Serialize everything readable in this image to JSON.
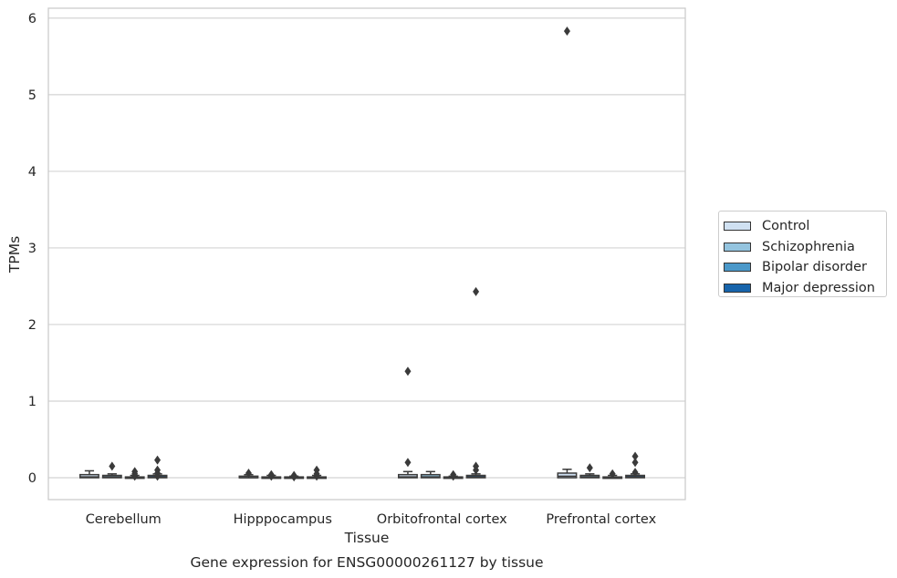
{
  "chart_data": {
    "type": "box",
    "title": "Gene expression for ENSG00000261127 by tissue",
    "xlabel": "Tissue",
    "ylabel": "TPMs",
    "ylim": [
      -0.28,
      6.13
    ],
    "yticks": [
      0,
      1,
      2,
      3,
      4,
      5,
      6
    ],
    "grid": true,
    "legend_position": "right",
    "categories": [
      "Cerebellum",
      "Hipppocampus",
      "Orbitofrontal cortex",
      "Prefrontal cortex"
    ],
    "series": [
      {
        "name": "Control",
        "color": "#d0e1f2",
        "boxes": [
          {
            "min": 0,
            "q1": 0,
            "median": 0.01,
            "q3": 0.04,
            "max": 0.09,
            "outliers": []
          },
          {
            "min": 0,
            "q1": 0,
            "median": 0,
            "q3": 0.02,
            "max": 0.04,
            "outliers": [
              0.06
            ]
          },
          {
            "min": 0,
            "q1": 0,
            "median": 0.01,
            "q3": 0.04,
            "max": 0.08,
            "outliers": [
              0.2,
              1.39
            ]
          },
          {
            "min": 0,
            "q1": 0,
            "median": 0.02,
            "q3": 0.06,
            "max": 0.11,
            "outliers": [
              5.83
            ]
          }
        ]
      },
      {
        "name": "Schizophrenia",
        "color": "#94c4df",
        "boxes": [
          {
            "min": 0,
            "q1": 0,
            "median": 0.01,
            "q3": 0.03,
            "max": 0.05,
            "outliers": [
              0.15
            ]
          },
          {
            "min": 0,
            "q1": 0,
            "median": 0,
            "q3": 0.01,
            "max": 0.03,
            "outliers": [
              0.04,
              0.02
            ]
          },
          {
            "min": 0,
            "q1": 0,
            "median": 0.01,
            "q3": 0.04,
            "max": 0.08,
            "outliers": []
          },
          {
            "min": 0,
            "q1": 0,
            "median": 0.01,
            "q3": 0.03,
            "max": 0.05,
            "outliers": [
              0.13
            ]
          }
        ]
      },
      {
        "name": "Bipolar disorder",
        "color": "#4a98c9",
        "boxes": [
          {
            "min": 0,
            "q1": 0,
            "median": 0,
            "q3": 0.01,
            "max": 0.03,
            "outliers": [
              0.08,
              0.05,
              0.02
            ]
          },
          {
            "min": 0,
            "q1": 0,
            "median": 0,
            "q3": 0.01,
            "max": 0.02,
            "outliers": [
              0.03,
              0.01
            ]
          },
          {
            "min": 0,
            "q1": 0,
            "median": 0,
            "q3": 0.01,
            "max": 0.02,
            "outliers": [
              0.04,
              0.02
            ]
          },
          {
            "min": 0,
            "q1": 0,
            "median": 0,
            "q3": 0.01,
            "max": 0.03,
            "outliers": [
              0.05
            ]
          }
        ]
      },
      {
        "name": "Major depression",
        "color": "#1764ab",
        "boxes": [
          {
            "min": 0,
            "q1": 0,
            "median": 0.01,
            "q3": 0.03,
            "max": 0.05,
            "outliers": [
              0.23,
              0.1,
              0.06,
              0.02
            ]
          },
          {
            "min": 0,
            "q1": 0,
            "median": 0,
            "q3": 0.01,
            "max": 0.03,
            "outliers": [
              0.1,
              0.05,
              0.02
            ]
          },
          {
            "min": 0,
            "q1": 0,
            "median": 0.01,
            "q3": 0.03,
            "max": 0.05,
            "outliers": [
              2.43,
              0.15,
              0.1
            ]
          },
          {
            "min": 0,
            "q1": 0,
            "median": 0.01,
            "q3": 0.03,
            "max": 0.05,
            "outliers": [
              0.28,
              0.2,
              0.07
            ]
          }
        ]
      }
    ]
  }
}
